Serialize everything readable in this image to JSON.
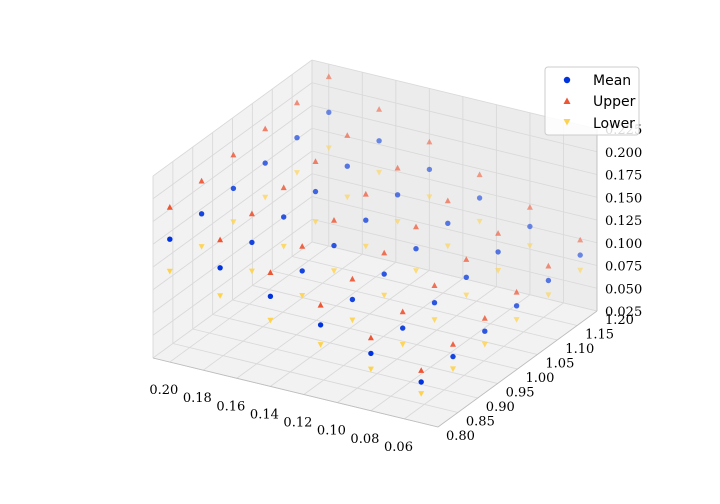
{
  "chart_data": {
    "type": "scatter",
    "projection": "3d",
    "x_ticks": [
      "0.20",
      "0.18",
      "0.16",
      "0.14",
      "0.12",
      "0.10",
      "0.08",
      "0.06"
    ],
    "y_ticks": [
      "0.80",
      "0.85",
      "0.90",
      "0.95",
      "1.00",
      "1.05",
      "1.10",
      "1.15",
      "1.20"
    ],
    "z_ticks": [
      "0.025",
      "0.050",
      "0.075",
      "0.100",
      "0.125",
      "0.150",
      "0.175",
      "0.200",
      "0.225"
    ],
    "xlim": [
      0.04,
      0.21
    ],
    "ylim": [
      0.8,
      1.2
    ],
    "zlim": [
      0.025,
      0.225
    ],
    "grid": true,
    "legend_position": "top-right",
    "legend": [
      {
        "label": "Mean",
        "marker": "circle",
        "color": "#0033dd"
      },
      {
        "label": "Upper",
        "marker": "triangle-up",
        "color": "#ee5533"
      },
      {
        "label": "Lower",
        "marker": "triangle-down",
        "color": "#ffd24d"
      }
    ],
    "x_values": [
      0.2,
      0.17,
      0.14,
      0.11,
      0.08,
      0.05
    ],
    "y_values": [
      0.8,
      0.88,
      0.96,
      1.04,
      1.12,
      1.2
    ],
    "series": [
      {
        "name": "Mean",
        "marker": "circle",
        "color": "#0033dd",
        "z_intercept": 0.04,
        "z_slope_x": 0.6,
        "z_slope_y": 0.03
      },
      {
        "name": "Upper",
        "marker": "triangle-up",
        "color": "#ee5533",
        "z_intercept": 0.045,
        "z_slope_x": 0.75,
        "z_slope_y": 0.04
      },
      {
        "name": "Lower",
        "marker": "triangle-down",
        "color": "#ffd24d",
        "z_intercept": 0.035,
        "z_slope_x": 0.45,
        "z_slope_y": 0.02
      }
    ]
  }
}
